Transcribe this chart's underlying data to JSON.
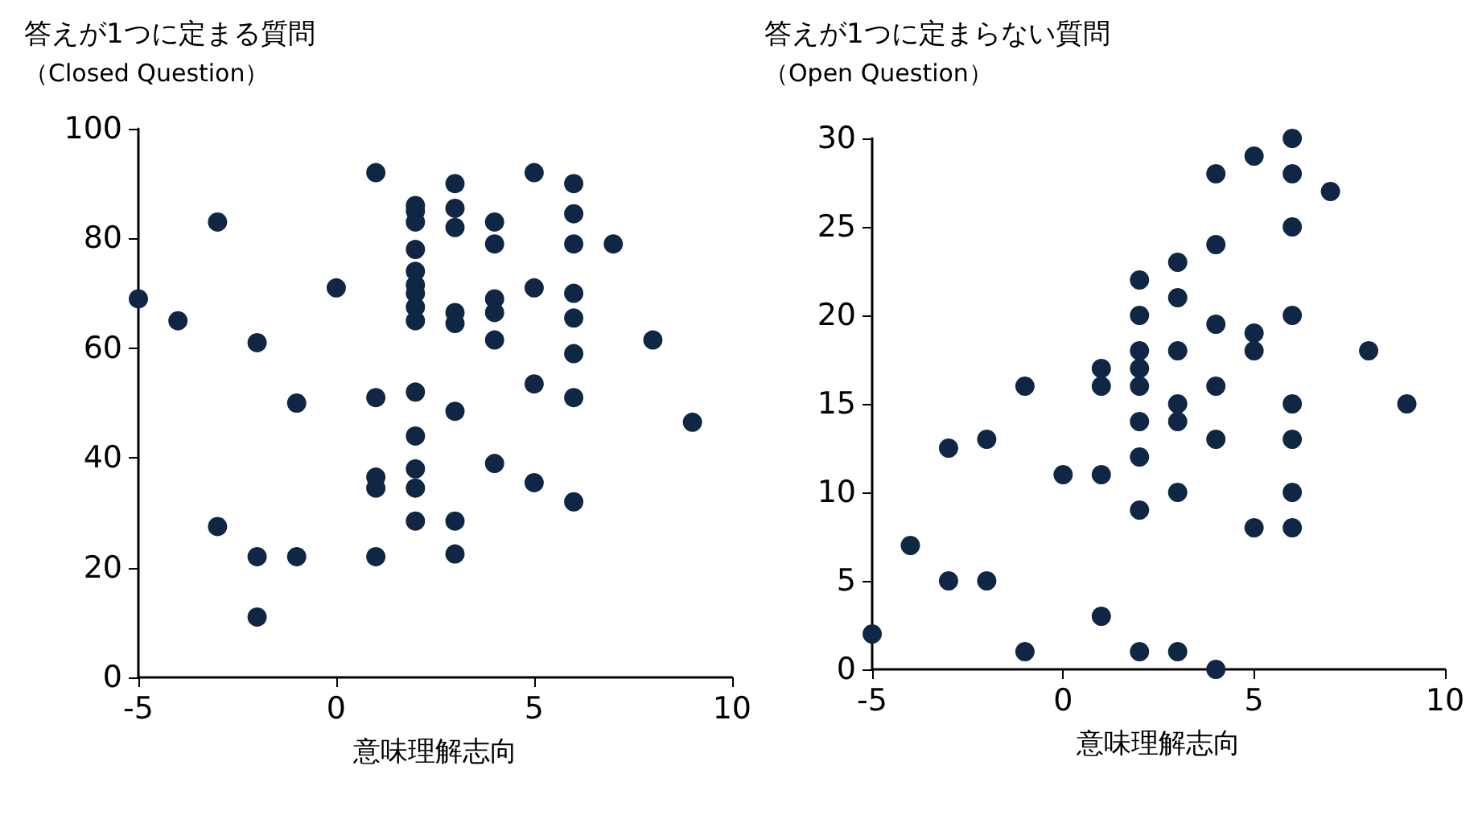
{
  "chart_data": [
    {
      "type": "scatter",
      "title": "答えが1つに定まる質問",
      "subtitle": "（Closed Question）",
      "xlabel": "意味理解志向",
      "x": [
        -5,
        -4,
        -3,
        -3,
        -2,
        -2,
        -2,
        -1,
        -1,
        0,
        1,
        1,
        1,
        1,
        1,
        2,
        2,
        2,
        2,
        2,
        2,
        2,
        2,
        2,
        2,
        2,
        2,
        2,
        2,
        3,
        3,
        3,
        3,
        3,
        3,
        3,
        3,
        4,
        4,
        4,
        4,
        4,
        4,
        5,
        5,
        5,
        5,
        6,
        6,
        6,
        6,
        6,
        6,
        6,
        6,
        7,
        8,
        9
      ],
      "values": [
        69,
        65,
        83,
        27.5,
        61,
        22,
        11,
        50,
        22,
        71,
        92,
        51,
        36.5,
        34.5,
        22,
        86,
        85,
        83,
        78,
        74,
        71.5,
        70,
        67.5,
        65,
        52,
        44,
        38,
        34.5,
        28.5,
        90,
        85.5,
        82,
        66.5,
        64.5,
        48.5,
        28.5,
        22.5,
        83,
        79,
        69,
        66.5,
        61.5,
        39,
        92,
        71,
        53.5,
        35.5,
        90,
        84.5,
        79,
        70,
        65.5,
        59,
        51,
        32,
        79,
        61.5,
        46.5
      ],
      "color": "#0f2644",
      "marker": "circle",
      "grid": false,
      "xlim": [
        -5,
        10
      ],
      "xticks": [
        -5,
        0,
        5,
        10
      ],
      "ylim": [
        0,
        100
      ],
      "yticks": [
        0,
        20,
        40,
        60,
        80,
        100
      ]
    },
    {
      "type": "scatter",
      "title": "答えが1つに定まらない質問",
      "subtitle": "（Open Question）",
      "xlabel": "意味理解志向",
      "x": [
        -5,
        -4,
        -3,
        -3,
        -2,
        -2,
        -1,
        -1,
        0,
        1,
        1,
        1,
        1,
        2,
        2,
        2,
        2,
        2,
        2,
        2,
        2,
        2,
        3,
        3,
        3,
        3,
        3,
        3,
        3,
        4,
        4,
        4,
        4,
        4,
        4,
        5,
        5,
        5,
        5,
        6,
        6,
        6,
        6,
        6,
        6,
        6,
        6,
        7,
        8,
        9
      ],
      "values": [
        2,
        7,
        12.5,
        5,
        13,
        5,
        16,
        1,
        11,
        17,
        16,
        11,
        3,
        22,
        20,
        18,
        17,
        16,
        14,
        12,
        9,
        1,
        23,
        21,
        18,
        15,
        14,
        10,
        1,
        28,
        24,
        19.5,
        16,
        13,
        0,
        29,
        19,
        18,
        8,
        30,
        28,
        25,
        20,
        15,
        13,
        10,
        8,
        27,
        18,
        15
      ],
      "color": "#0f2644",
      "marker": "circle",
      "grid": false,
      "xlim": [
        -5,
        10
      ],
      "xticks": [
        -5,
        0,
        5,
        10
      ],
      "ylim": [
        0,
        30
      ],
      "yticks": [
        0,
        5,
        10,
        15,
        20,
        25,
        30
      ]
    }
  ]
}
